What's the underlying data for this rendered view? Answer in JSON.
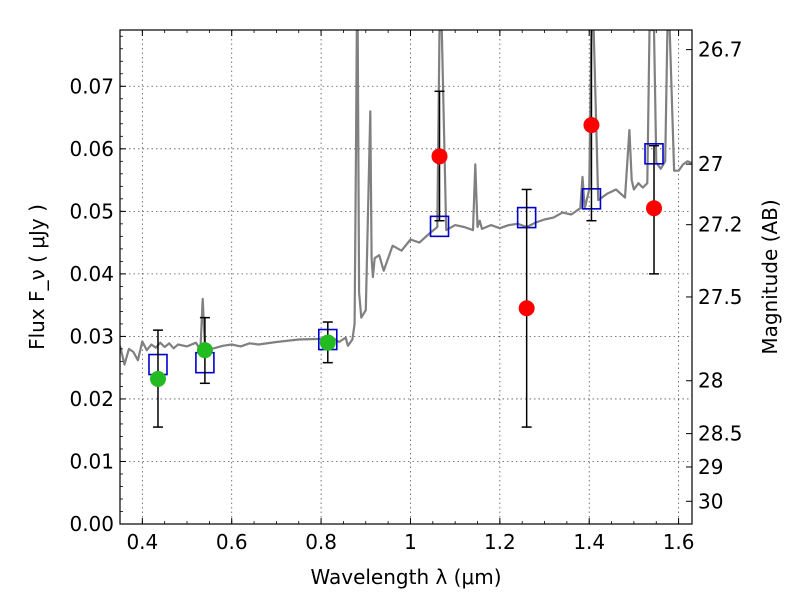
{
  "chart_data": {
    "type": "scatter",
    "xlabel": "Wavelength  λ (μm)",
    "ylabel": "Flux  F_ν  ( μJy )",
    "y2label": "Magnitude (AB)",
    "xlim": [
      0.35,
      1.63
    ],
    "ylim": [
      0.0,
      0.079
    ],
    "grid": true,
    "x_ticks": [
      0.4,
      0.6,
      0.8,
      1.0,
      1.2,
      1.4,
      1.6
    ],
    "x_tick_labels": [
      "0.4",
      "0.6",
      "0.8",
      "1",
      "1.2",
      "1.4",
      "1.6"
    ],
    "y_ticks": [
      0.0,
      0.01,
      0.02,
      0.03,
      0.04,
      0.05,
      0.06,
      0.07
    ],
    "y_tick_labels": [
      "0.00",
      "0.01",
      "0.02",
      "0.03",
      "0.04",
      "0.05",
      "0.06",
      "0.07"
    ],
    "mag_ticks": [
      26.7,
      27,
      27.2,
      27.5,
      28,
      28.5,
      29,
      30
    ],
    "mag_tick_labels": [
      "26.7",
      "27",
      "27.2",
      "27.5",
      "28",
      "28.5",
      "29",
      "30"
    ],
    "colors": {
      "spectrum": "#808080",
      "model": "#0000cc",
      "detection": "#22bb22",
      "nondetection": "#ff0000",
      "errorbar": "#000000"
    },
    "spectrum": {
      "x": [
        0.35,
        0.36,
        0.37,
        0.38,
        0.39,
        0.4,
        0.41,
        0.42,
        0.43,
        0.44,
        0.45,
        0.46,
        0.47,
        0.48,
        0.5,
        0.52,
        0.53,
        0.535,
        0.54,
        0.545,
        0.55,
        0.56,
        0.58,
        0.6,
        0.62,
        0.64,
        0.66,
        0.7,
        0.75,
        0.8,
        0.82,
        0.84,
        0.855,
        0.86,
        0.87,
        0.875,
        0.878,
        0.88,
        0.882,
        0.885,
        0.89,
        0.9,
        0.91,
        0.913,
        0.916,
        0.92,
        0.93,
        0.94,
        0.96,
        0.98,
        1.0,
        1.02,
        1.04,
        1.06,
        1.065,
        1.07,
        1.08,
        1.1,
        1.12,
        1.14,
        1.145,
        1.15,
        1.155,
        1.16,
        1.18,
        1.2,
        1.22,
        1.24,
        1.26,
        1.28,
        1.3,
        1.32,
        1.34,
        1.36,
        1.38,
        1.385,
        1.39,
        1.4,
        1.405,
        1.41,
        1.42,
        1.44,
        1.46,
        1.48,
        1.49,
        1.495,
        1.5,
        1.51,
        1.52,
        1.53,
        1.535,
        1.54,
        1.545,
        1.55,
        1.56,
        1.57,
        1.575,
        1.58,
        1.59,
        1.6,
        1.61,
        1.62,
        1.63
      ],
      "y": [
        0.0285,
        0.0255,
        0.028,
        0.0275,
        0.0262,
        0.0292,
        0.0278,
        0.0287,
        0.0282,
        0.029,
        0.0283,
        0.0289,
        0.0281,
        0.0287,
        0.0284,
        0.029,
        0.0278,
        0.036,
        0.0286,
        0.0282,
        0.0279,
        0.0281,
        0.0285,
        0.0287,
        0.0284,
        0.0289,
        0.0287,
        0.0291,
        0.0295,
        0.0296,
        0.0301,
        0.0291,
        0.0298,
        0.0285,
        0.0295,
        0.032,
        0.06,
        0.079,
        0.079,
        0.037,
        0.033,
        0.0342,
        0.066,
        0.0425,
        0.0395,
        0.0425,
        0.043,
        0.0405,
        0.0445,
        0.0437,
        0.0455,
        0.045,
        0.0463,
        0.0475,
        0.079,
        0.079,
        0.047,
        0.0478,
        0.0475,
        0.047,
        0.0575,
        0.0475,
        0.0485,
        0.0472,
        0.0478,
        0.0473,
        0.0478,
        0.048,
        0.0475,
        0.0482,
        0.0487,
        0.049,
        0.0498,
        0.0495,
        0.0505,
        0.0555,
        0.0505,
        0.0535,
        0.079,
        0.079,
        0.0518,
        0.0528,
        0.0535,
        0.0522,
        0.063,
        0.055,
        0.0535,
        0.0545,
        0.0538,
        0.0545,
        0.079,
        0.079,
        0.079,
        0.0578,
        0.0568,
        0.058,
        0.079,
        0.079,
        0.0565,
        0.0565,
        0.0575,
        0.058,
        0.0577
      ]
    },
    "series": [
      {
        "marker": "open-square",
        "x": [
          0.435,
          0.54,
          0.815,
          1.065,
          1.26,
          1.405,
          1.545
        ],
        "y": [
          0.0255,
          0.0258,
          0.0295,
          0.0476,
          0.049,
          0.052,
          0.0592
        ]
      },
      {
        "marker": "filled-circle-green",
        "x": [
          0.435,
          0.54,
          0.815
        ],
        "y": [
          0.0232,
          0.0278,
          0.029
        ],
        "yerr_low": [
          0.0155,
          0.0225,
          0.0258
        ],
        "yerr_high": [
          0.031,
          0.033,
          0.0323
        ]
      },
      {
        "marker": "filled-circle-red",
        "x": [
          1.065,
          1.26,
          1.405,
          1.545
        ],
        "y": [
          0.0588,
          0.0345,
          0.0638,
          0.0505
        ],
        "yerr_low": [
          0.0485,
          0.0155,
          0.0485,
          0.04
        ],
        "yerr_high": [
          0.0692,
          0.0535,
          0.079,
          0.0605
        ]
      }
    ]
  }
}
